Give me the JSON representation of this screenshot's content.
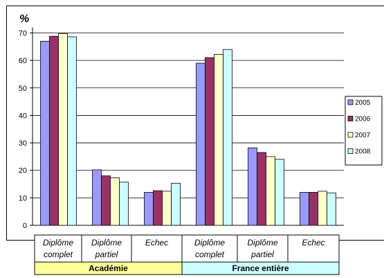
{
  "chart_data": {
    "type": "bar",
    "ylabel": "%",
    "ylim": [
      0,
      70
    ],
    "yticks": [
      0,
      10,
      20,
      30,
      40,
      50,
      60,
      70
    ],
    "grid": true,
    "legend_position": "right",
    "categories": [
      {
        "line1": "Diplôme",
        "line2": "complet",
        "group": 0
      },
      {
        "line1": "Diplôme",
        "line2": "partiel",
        "group": 0
      },
      {
        "line1": "Echec",
        "line2": "",
        "group": 0
      },
      {
        "line1": "Diplôme",
        "line2": "complet",
        "group": 1
      },
      {
        "line1": "Diplôme",
        "line2": "partiel",
        "group": 1
      },
      {
        "line1": "Echec",
        "line2": "",
        "group": 1
      }
    ],
    "groups": [
      {
        "label": "Académie",
        "color": "#ffff99"
      },
      {
        "label": "France entière",
        "color": "#ccffff"
      }
    ],
    "series": [
      {
        "name": "2005",
        "color": "#9999ff",
        "values": [
          67,
          20.2,
          12,
          59,
          28.2,
          12
        ]
      },
      {
        "name": "2006",
        "color": "#993366",
        "values": [
          68.8,
          18,
          12.6,
          61,
          26.5,
          12
        ]
      },
      {
        "name": "2007",
        "color": "#ffffcc",
        "values": [
          69.8,
          17.3,
          12.4,
          62.2,
          25,
          12.4
        ]
      },
      {
        "name": "2008",
        "color": "#ccffff",
        "values": [
          68.6,
          15.7,
          15.3,
          64,
          24,
          11.8
        ]
      }
    ]
  }
}
